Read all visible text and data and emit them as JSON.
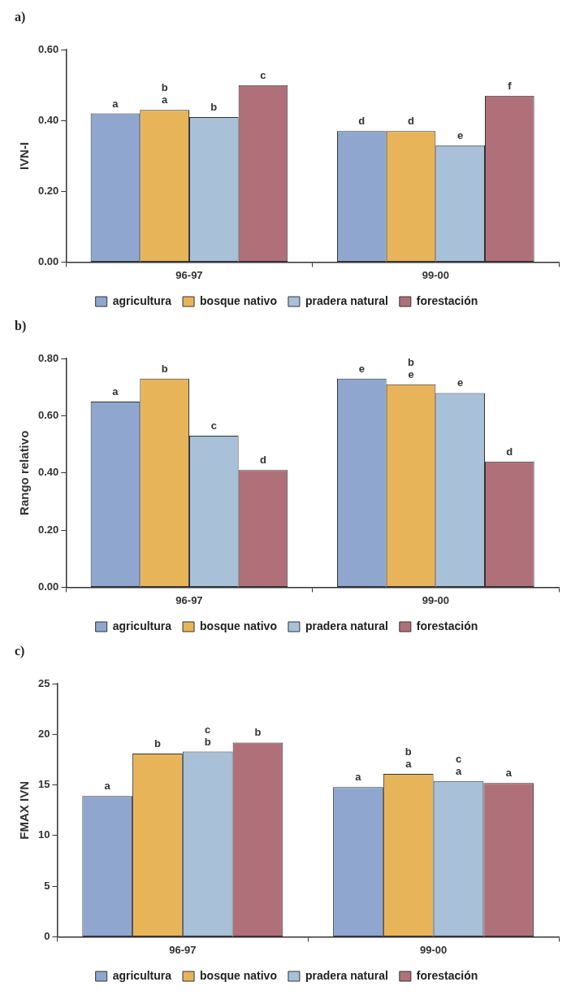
{
  "chart_data": [
    {
      "type": "bar",
      "title": "a)",
      "ylabel": "IVN-I",
      "categories": [
        "96-97",
        "99-00"
      ],
      "legend": "bottom",
      "ylim": [
        0,
        0.6
      ],
      "yticks": [
        {
          "value": 0,
          "label": "0.00"
        },
        {
          "value": 0.2,
          "label": "0.20"
        },
        {
          "value": 0.4,
          "label": "0.40"
        },
        {
          "value": 0.6,
          "label": "0.60"
        }
      ],
      "series": [
        {
          "name": "agricultura",
          "color": "#8fa6cf",
          "values": [
            0.42,
            0.37
          ],
          "value_labels": [
            "a",
            "d"
          ]
        },
        {
          "name": "bosque nativo",
          "color": "#e8b45a",
          "values": [
            0.43,
            0.37
          ],
          "value_labels": [
            "b\na",
            "d"
          ]
        },
        {
          "name": "pradera natural",
          "color": "#a8c0d8",
          "values": [
            0.41,
            0.33
          ],
          "value_labels": [
            "b",
            "e"
          ]
        },
        {
          "name": "forestación",
          "color": "#b0707a",
          "values": [
            0.5,
            0.47
          ],
          "value_labels": [
            "c",
            "f"
          ]
        }
      ]
    },
    {
      "type": "bar",
      "title": "b)",
      "ylabel": "Rango relativo",
      "categories": [
        "96-97",
        "99-00"
      ],
      "legend": "bottom",
      "ylim": [
        0,
        0.8
      ],
      "yticks": [
        {
          "value": 0,
          "label": "0.00"
        },
        {
          "value": 0.2,
          "label": "0.20"
        },
        {
          "value": 0.4,
          "label": "0.40"
        },
        {
          "value": 0.6,
          "label": "0.60"
        },
        {
          "value": 0.8,
          "label": "0.80"
        }
      ],
      "series": [
        {
          "name": "agricultura",
          "color": "#8fa6cf",
          "values": [
            0.65,
            0.73
          ],
          "value_labels": [
            "a",
            "e"
          ]
        },
        {
          "name": "bosque nativo",
          "color": "#e8b45a",
          "values": [
            0.73,
            0.71
          ],
          "value_labels": [
            "b",
            "b\ne"
          ]
        },
        {
          "name": "pradera natural",
          "color": "#a8c0d8",
          "values": [
            0.53,
            0.68
          ],
          "value_labels": [
            "c",
            "e"
          ]
        },
        {
          "name": "forestación",
          "color": "#b0707a",
          "values": [
            0.41,
            0.44
          ],
          "value_labels": [
            "d",
            "d"
          ]
        }
      ]
    },
    {
      "type": "bar",
      "title": "c)",
      "ylabel": "FMAX IVN",
      "categories": [
        "96-97",
        "99-00"
      ],
      "legend": "bottom",
      "ylim": [
        0,
        25
      ],
      "yticks": [
        0,
        5,
        10,
        15,
        20,
        25
      ],
      "series": [
        {
          "name": "agricultura",
          "color": "#8fa6cf",
          "values": [
            13.9,
            14.8
          ],
          "value_labels": [
            "a",
            "a"
          ]
        },
        {
          "name": "bosque nativo",
          "color": "#e8b45a",
          "values": [
            18.1,
            16.1
          ],
          "value_labels": [
            "b",
            "b\na"
          ]
        },
        {
          "name": "pradera natural",
          "color": "#a8c0d8",
          "values": [
            18.3,
            15.4
          ],
          "value_labels": [
            "c\nb",
            "c\na"
          ]
        },
        {
          "name": "forestación",
          "color": "#b0707a",
          "values": [
            19.2,
            15.2
          ],
          "value_labels": [
            "b",
            "a"
          ]
        }
      ]
    }
  ]
}
